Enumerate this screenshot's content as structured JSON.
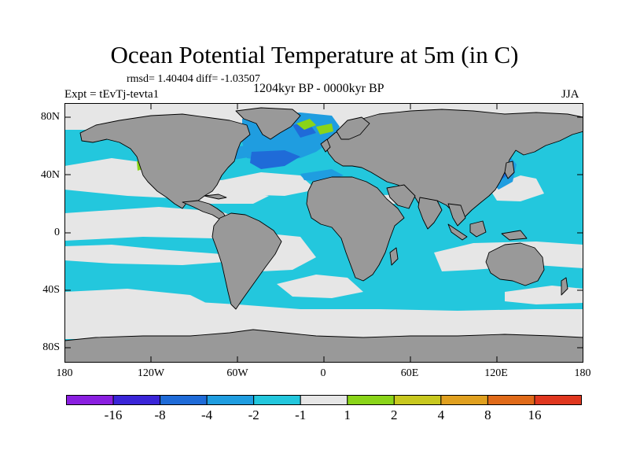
{
  "title": "Ocean Potential Temperature at 5m (in C)",
  "stats": "rmsd= 1.40404  diff= -1.03507",
  "experiment": "Expt = tEvTj-tevta1",
  "period": "1204kyr BP - 0000kyr BP",
  "season": "JJA",
  "axes": {
    "lat_ticks": [
      "80N",
      "40N",
      "0",
      "40S",
      "80S"
    ],
    "lon_ticks": [
      "180",
      "120W",
      "60W",
      "0",
      "60E",
      "120E",
      "180"
    ]
  },
  "colorbar": {
    "labels": [
      "-16",
      "-8",
      "-4",
      "-2",
      "-1",
      "1",
      "2",
      "4",
      "8",
      "16"
    ],
    "colors": [
      "#8a1fe0",
      "#3a25d8",
      "#1f6bd8",
      "#1f9de0",
      "#23c7dd",
      "#e6e6e6",
      "#8ad419",
      "#c8c81f",
      "#e0a01f",
      "#e06a19",
      "#e0371f"
    ]
  },
  "map_colors": {
    "land": "#999999",
    "coast": "#000000",
    "diff_n1_n2": "#23c7dd",
    "diff_n2_n4": "#1f9de0",
    "diff_n4_n8": "#1f6bd8",
    "diff_n1_p1": "#e6e6e6",
    "diff_p1_p2": "#8ad419"
  }
}
